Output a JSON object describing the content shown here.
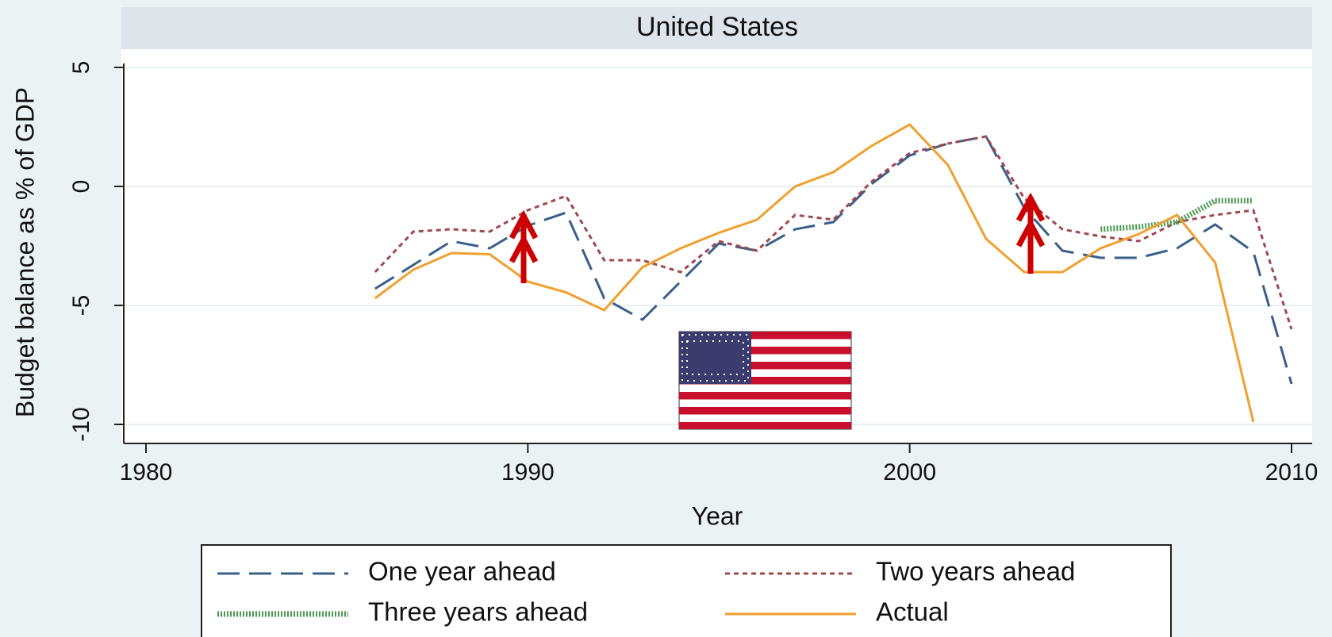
{
  "chart_data": {
    "type": "line",
    "title": "United States",
    "xlabel": "Year",
    "ylabel": "Budget balance as % of GDP",
    "x": [
      1986,
      1987,
      1988,
      1989,
      1990,
      1991,
      1992,
      1993,
      1994,
      1995,
      1996,
      1997,
      1998,
      1999,
      2000,
      2001,
      2002,
      2003,
      2004,
      2005,
      2006,
      2007,
      2008,
      2009,
      2010
    ],
    "series": [
      {
        "name": "One year ahead",
        "color": "#3a5f8a",
        "dash": "28 12",
        "values": [
          -4.3,
          -3.3,
          -2.3,
          -2.6,
          -1.65,
          -1.1,
          -4.7,
          -5.6,
          -4.0,
          -2.4,
          -2.7,
          -1.8,
          -1.5,
          0.1,
          1.3,
          1.8,
          2.1,
          -0.9,
          -2.7,
          -3.0,
          -3.0,
          -2.6,
          -1.6,
          -2.75,
          -8.3
        ]
      },
      {
        "name": "Two years ahead",
        "color": "#a0474f",
        "dash": "6 5",
        "values": [
          -3.6,
          -1.9,
          -1.8,
          -1.9,
          -1.0,
          -0.4,
          -3.1,
          -3.1,
          -3.6,
          -2.3,
          -2.7,
          -1.2,
          -1.4,
          0.2,
          1.4,
          1.8,
          2.1,
          -0.5,
          -1.8,
          -2.1,
          -2.3,
          -1.5,
          -1.2,
          -1.0,
          -6.0
        ]
      },
      {
        "name": "Three years ahead",
        "color": "#4c9a52",
        "dash": "2 2",
        "width": 7,
        "values": [
          null,
          null,
          null,
          null,
          null,
          null,
          null,
          null,
          null,
          null,
          null,
          null,
          null,
          null,
          null,
          null,
          null,
          null,
          null,
          -1.8,
          -1.7,
          -1.5,
          -0.6,
          -0.6,
          null
        ]
      },
      {
        "name": "Actual",
        "color": "#f0a030",
        "dash": "",
        "values": [
          -4.7,
          -3.5,
          -2.8,
          -2.85,
          -4.0,
          -4.45,
          -5.2,
          -3.4,
          -2.6,
          -1.95,
          -1.4,
          0.0,
          0.6,
          1.7,
          2.6,
          0.9,
          -2.2,
          -3.6,
          -3.6,
          -2.6,
          -2.0,
          -1.2,
          -3.2,
          -9.9,
          null
        ]
      }
    ],
    "xlim": [
      1980,
      2010
    ],
    "xticks": [
      1980,
      1990,
      2000,
      2010
    ],
    "ylim": [
      -10,
      5
    ],
    "yticks": [
      -10,
      -5,
      0,
      5
    ],
    "grid": true,
    "legend": "bottom"
  }
}
